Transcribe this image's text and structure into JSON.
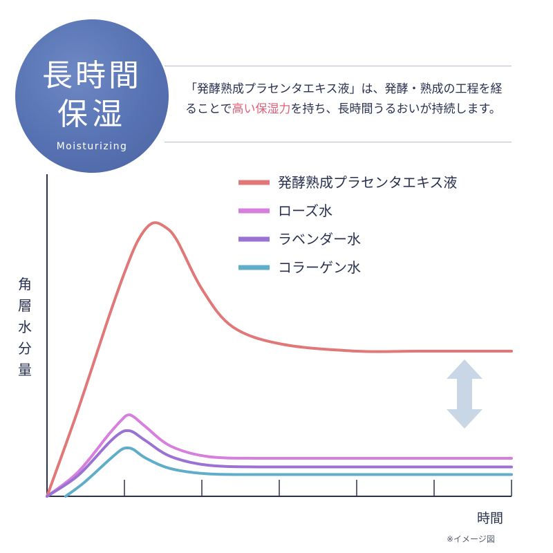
{
  "badge": {
    "line1": "長時間",
    "line2": "保湿",
    "subtitle": "Moisturizing",
    "color": "#5a75b4"
  },
  "description": {
    "part1": "「発酵熟成プラセンタエキス液」は、発酵・熟成の工程を経ることで",
    "highlight": "高い保湿力",
    "part2": "を持ち、長時間うるおいが持続します。",
    "highlight_color": "#e0607a"
  },
  "note": "※イメージ図",
  "chart_data": {
    "type": "line",
    "ylabel": "角層水分量",
    "xlabel": "時間",
    "x_ticks": 6,
    "grid": false,
    "legend_position": "top-right",
    "series": [
      {
        "name": "発酵熟成プラセンタエキス液",
        "color": "#e07878",
        "points": [
          [
            0,
            0
          ],
          [
            5,
            25
          ],
          [
            10,
            52
          ],
          [
            13,
            67
          ],
          [
            15,
            75
          ],
          [
            17,
            79
          ],
          [
            19,
            78
          ],
          [
            21,
            74
          ],
          [
            25,
            60
          ],
          [
            30,
            49
          ],
          [
            38,
            44
          ],
          [
            50,
            42
          ],
          [
            60,
            42
          ],
          [
            75,
            42
          ]
        ]
      },
      {
        "name": "ローズ水",
        "color": "#d77fdd",
        "points": [
          [
            0,
            0
          ],
          [
            5,
            7
          ],
          [
            10,
            18
          ],
          [
            12,
            22
          ],
          [
            13,
            23.5
          ],
          [
            14,
            23
          ],
          [
            16,
            20
          ],
          [
            20,
            14.5
          ],
          [
            26,
            11.5
          ],
          [
            35,
            11
          ],
          [
            50,
            11
          ],
          [
            75,
            11
          ]
        ]
      },
      {
        "name": "ラベンダー水",
        "color": "#9a72d4",
        "points": [
          [
            0,
            0
          ],
          [
            5,
            6
          ],
          [
            10,
            15.5
          ],
          [
            12,
            18.5
          ],
          [
            13,
            19
          ],
          [
            14,
            18.5
          ],
          [
            16,
            16
          ],
          [
            20,
            11.5
          ],
          [
            26,
            9
          ],
          [
            35,
            8.5
          ],
          [
            50,
            8.5
          ],
          [
            75,
            8.5
          ]
        ]
      },
      {
        "name": "コラーゲン水",
        "color": "#5fadc9",
        "points": [
          [
            3,
            0
          ],
          [
            6,
            4
          ],
          [
            10,
            10.5
          ],
          [
            12,
            13.5
          ],
          [
            13,
            14
          ],
          [
            14,
            13.5
          ],
          [
            16,
            11
          ],
          [
            20,
            8
          ],
          [
            26,
            6.5
          ],
          [
            35,
            6.3
          ],
          [
            50,
            6.3
          ],
          [
            75,
            6.3
          ]
        ]
      }
    ],
    "arrow_color": "#c9d6e6"
  }
}
